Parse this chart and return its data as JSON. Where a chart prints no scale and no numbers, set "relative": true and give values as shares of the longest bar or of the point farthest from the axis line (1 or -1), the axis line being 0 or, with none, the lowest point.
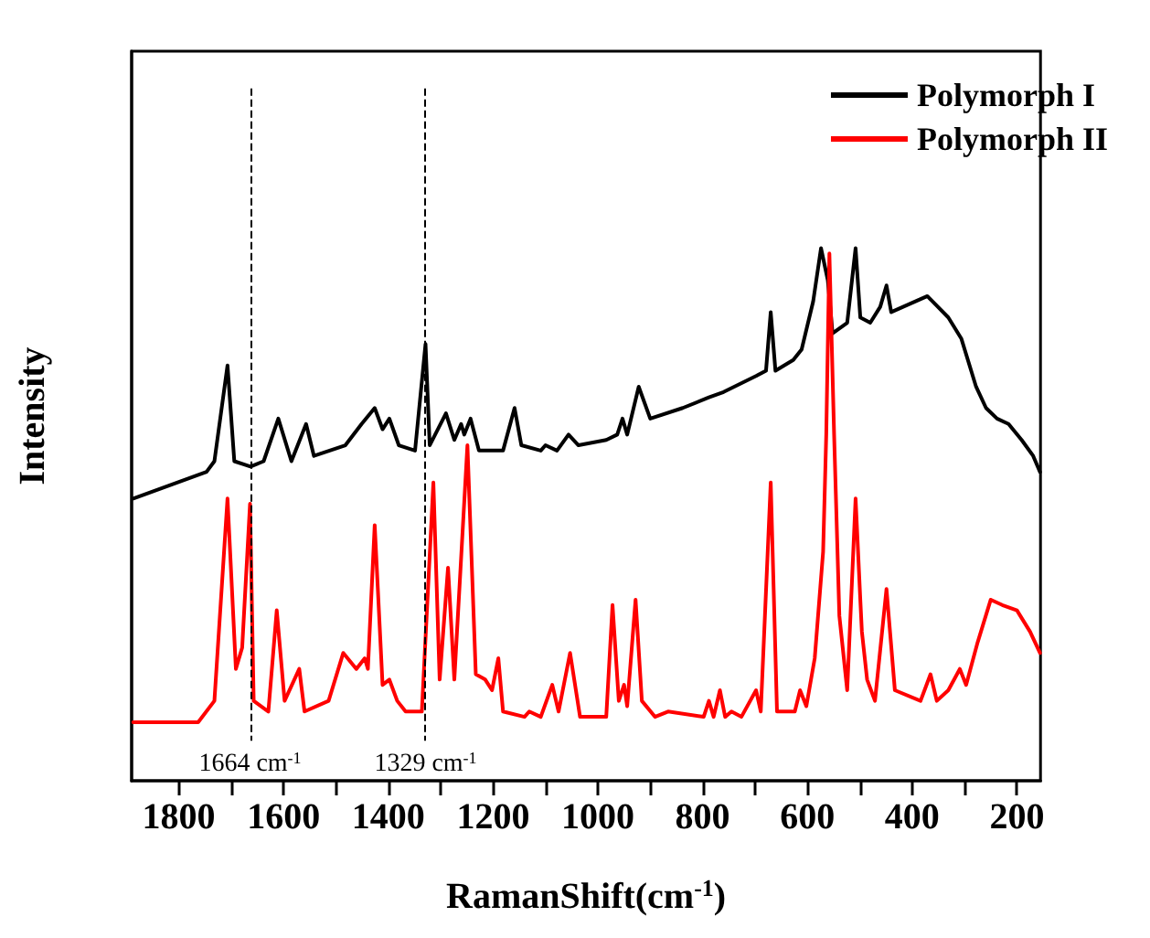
{
  "chart_data": {
    "type": "line",
    "relative": true,
    "xlabel": "RamanShift(cm$^{-1}$)",
    "ylabel": "Intensity",
    "xlim": [
      1890,
      155
    ],
    "xticks": [
      1800,
      {
        "value": 1700,
        "label": null
      },
      1600,
      {
        "value": 1500,
        "label": null
      },
      1400,
      {
        "value": 1300,
        "label": null
      },
      1200,
      {
        "value": 1100,
        "label": null
      },
      1000,
      {
        "value": 900,
        "label": null
      },
      800,
      {
        "value": 700,
        "label": null
      },
      600,
      {
        "value": 500,
        "label": null
      },
      400,
      {
        "value": 300,
        "label": null
      },
      200
    ],
    "tick_labels": "x",
    "legend": "top right",
    "marker": "none",
    "line_style": "solid",
    "ref_lines": [
      {
        "axis": "x",
        "value": 1664,
        "label": "1664 cm$^{-1}$",
        "color": "#000000",
        "line_style": "dashed"
      },
      {
        "axis": "x",
        "value": 1329,
        "label": "1329 cm$^{-1}$",
        "color": "#000000",
        "line_style": "dashed"
      }
    ],
    "series": [
      {
        "name": "Polymorph I",
        "color": "#000000",
        "x": [
          1887,
          1747,
          1732,
          1707,
          1694,
          1663,
          1638,
          1610,
          1585,
          1557,
          1542,
          1482,
          1451,
          1426,
          1411,
          1398,
          1380,
          1349,
          1329,
          1321,
          1290,
          1274,
          1261,
          1255,
          1243,
          1227,
          1181,
          1159,
          1146,
          1109,
          1100,
          1078,
          1056,
          1037,
          984,
          963,
          953,
          944,
          922,
          900,
          838,
          788,
          760,
          698,
          679,
          670,
          661,
          627,
          611,
          589,
          574,
          561,
          552,
          524,
          508,
          499,
          480,
          461,
          449,
          440,
          371,
          331,
          306,
          278,
          259,
          238,
          216,
          191,
          169,
          156
        ],
        "values": [
          0.53,
          0.58,
          0.6,
          0.78,
          0.6,
          0.59,
          0.6,
          0.68,
          0.6,
          0.67,
          0.61,
          0.63,
          0.67,
          0.7,
          0.66,
          0.68,
          0.63,
          0.62,
          0.82,
          0.63,
          0.69,
          0.64,
          0.67,
          0.65,
          0.68,
          0.62,
          0.62,
          0.7,
          0.63,
          0.62,
          0.63,
          0.62,
          0.65,
          0.63,
          0.64,
          0.65,
          0.68,
          0.65,
          0.74,
          0.68,
          0.7,
          0.72,
          0.73,
          0.76,
          0.77,
          0.88,
          0.77,
          0.79,
          0.81,
          0.9,
          1.0,
          0.94,
          0.84,
          0.86,
          1.0,
          0.87,
          0.86,
          0.89,
          0.93,
          0.88,
          0.91,
          0.87,
          0.83,
          0.74,
          0.7,
          0.68,
          0.67,
          0.64,
          0.61,
          0.58
        ]
      },
      {
        "name": "Polymorph II",
        "color": "#ff0000",
        "x": [
          1887,
          1763,
          1732,
          1707,
          1691,
          1679,
          1664,
          1657,
          1629,
          1613,
          1598,
          1570,
          1560,
          1514,
          1486,
          1461,
          1445,
          1439,
          1426,
          1411,
          1398,
          1383,
          1367,
          1336,
          1314,
          1302,
          1286,
          1274,
          1249,
          1233,
          1215,
          1202,
          1190,
          1181,
          1140,
          1131,
          1109,
          1087,
          1075,
          1053,
          1034,
          1016,
          984,
          972,
          960,
          950,
          944,
          928,
          916,
          891,
          866,
          798,
          788,
          779,
          767,
          757,
          745,
          726,
          698,
          689,
          670,
          658,
          624,
          614,
          602,
          586,
          570,
          564,
          558,
          549,
          539,
          524,
          508,
          499,
          496,
          486,
          471,
          449,
          433,
          384,
          365,
          353,
          331,
          309,
          297,
          275,
          250,
          228,
          200,
          175,
          156
        ],
        "values": [
          0.11,
          0.11,
          0.15,
          0.53,
          0.21,
          0.25,
          0.52,
          0.15,
          0.13,
          0.32,
          0.15,
          0.21,
          0.13,
          0.15,
          0.24,
          0.21,
          0.23,
          0.21,
          0.48,
          0.18,
          0.19,
          0.15,
          0.13,
          0.13,
          0.56,
          0.19,
          0.4,
          0.19,
          0.63,
          0.2,
          0.19,
          0.17,
          0.23,
          0.13,
          0.12,
          0.13,
          0.12,
          0.18,
          0.13,
          0.24,
          0.12,
          0.12,
          0.12,
          0.33,
          0.15,
          0.18,
          0.14,
          0.34,
          0.15,
          0.12,
          0.13,
          0.12,
          0.15,
          0.12,
          0.17,
          0.12,
          0.13,
          0.12,
          0.17,
          0.13,
          0.56,
          0.13,
          0.13,
          0.17,
          0.14,
          0.23,
          0.43,
          0.65,
          0.99,
          0.65,
          0.31,
          0.17,
          0.53,
          0.34,
          0.28,
          0.19,
          0.15,
          0.36,
          0.17,
          0.15,
          0.2,
          0.15,
          0.17,
          0.21,
          0.18,
          0.26,
          0.34,
          0.33,
          0.32,
          0.28,
          0.24
        ]
      }
    ]
  }
}
